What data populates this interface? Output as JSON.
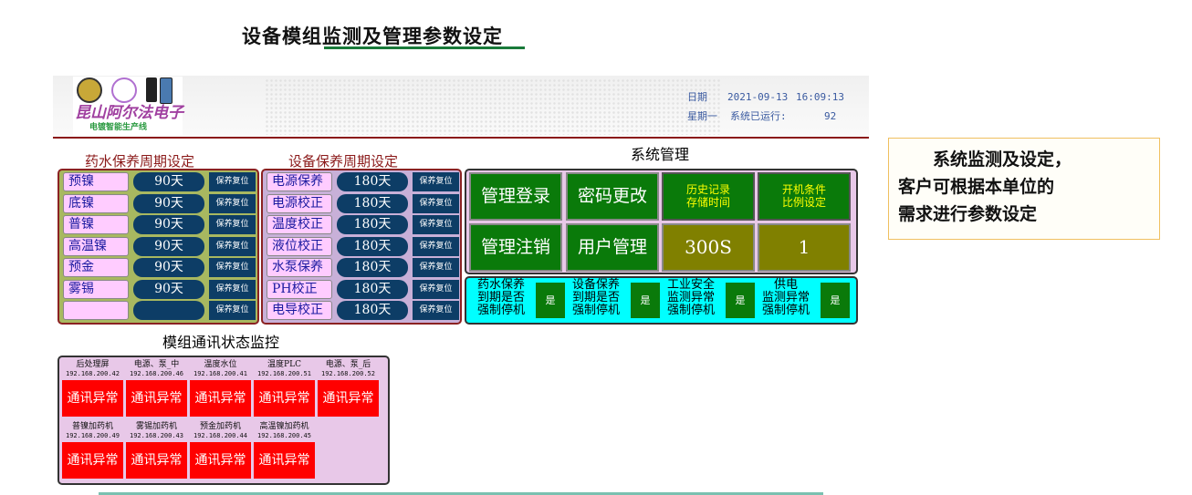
{
  "page_title": "设备模组监测及管理参数设定",
  "logo": {
    "name": "昆山阿尔法电子",
    "subtitle": "电镀智能生产线"
  },
  "header": {
    "date_label": "日期",
    "date": "2021-09-13",
    "time": "16:09:13",
    "weekday": "星期一",
    "runtime_label": "系统已运行:",
    "runtime": "92"
  },
  "chem": {
    "title": "药水保养周期设定",
    "reset_label": "保养复位",
    "rows": [
      {
        "name": "预镍",
        "value": "90天"
      },
      {
        "name": "底镍",
        "value": "90天"
      },
      {
        "name": "普镍",
        "value": "90天"
      },
      {
        "name": "高温镍",
        "value": "90天"
      },
      {
        "name": "预金",
        "value": "90天"
      },
      {
        "name": "雾锡",
        "value": "90天"
      },
      {
        "name": "",
        "value": ""
      }
    ]
  },
  "equip": {
    "title": "设备保养周期设定",
    "reset_label": "保养复位",
    "rows": [
      {
        "name": "电源保养",
        "value": "180天"
      },
      {
        "name": "电源校正",
        "value": "180天"
      },
      {
        "name": "温度校正",
        "value": "180天"
      },
      {
        "name": "液位校正",
        "value": "180天"
      },
      {
        "name": "水泵保养",
        "value": "180天"
      },
      {
        "name": "PH校正",
        "value": "180天"
      },
      {
        "name": "电导校正",
        "value": "180天"
      }
    ]
  },
  "system": {
    "title": "系统管理",
    "login": "管理登录",
    "password": "密码更改",
    "logout": "管理注销",
    "users": "用户管理",
    "history_label": [
      "历史记录",
      "存储时间"
    ],
    "history_value": "300S",
    "ratio_label": [
      "开机条件",
      "比例设定"
    ],
    "ratio_value": "1",
    "stops": [
      {
        "label": [
          "药水保养",
          "到期是否",
          "强制停机"
        ],
        "value": "是"
      },
      {
        "label": [
          "设备保养",
          "到期是否",
          "强制停机"
        ],
        "value": "是"
      },
      {
        "label": [
          "工业安全",
          "监测异常",
          "强制停机"
        ],
        "value": "是"
      },
      {
        "label": [
          "供电",
          "监测异常",
          "强制停机"
        ],
        "value": "是"
      }
    ]
  },
  "comm": {
    "title": "模组通讯状态监控",
    "modules": [
      {
        "name": "后处理屏",
        "ip": "192.168.200.42",
        "status": "通讯异常"
      },
      {
        "name": "电源、泵_中",
        "ip": "192.168.200.46",
        "status": "通讯异常"
      },
      {
        "name": "温度水位",
        "ip": "192.168.200.41",
        "status": "通讯异常"
      },
      {
        "name": "温度PLC",
        "ip": "192.168.200.51",
        "status": "通讯异常"
      },
      {
        "name": "电源、泵_后",
        "ip": "192.168.200.52",
        "status": "通讯异常"
      },
      {
        "name": "普镍加药机",
        "ip": "192.168.200.49",
        "status": "通讯异常"
      },
      {
        "name": "雾锡加药机",
        "ip": "192.168.200.43",
        "status": "通讯异常"
      },
      {
        "name": "预金加药机",
        "ip": "192.168.200.44",
        "status": "通讯异常"
      },
      {
        "name": "高温镍加药机",
        "ip": "192.168.200.45",
        "status": "通讯异常"
      }
    ]
  },
  "note": [
    "　　系统监测及设定，",
    "客户可根据本单位的",
    "需求进行参数设定"
  ],
  "colors": {
    "panel_green": "#0a7a0a",
    "olive": "#808000",
    "navy": "#0d3d66",
    "alarm_red": "#ff0000",
    "cyan": "#00ffff"
  }
}
